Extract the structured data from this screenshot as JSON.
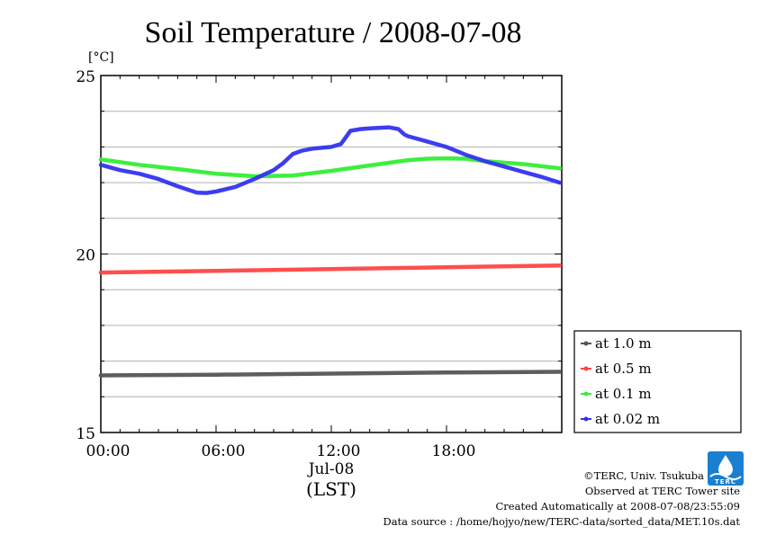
{
  "chart_data": {
    "type": "line",
    "title": "Soil Temperature / 2008-07-08",
    "ylabel": "[°C]",
    "xlabel": "(LST)",
    "x_date_label": "Jul-08",
    "x_ticks": [
      "00:00",
      "06:00",
      "12:00",
      "18:00"
    ],
    "x_tick_hours": [
      0,
      6,
      12,
      18
    ],
    "xlim_hours": [
      0,
      24
    ],
    "y_ticks": [
      "15",
      "20",
      "25"
    ],
    "y_tick_values": [
      15,
      20,
      25
    ],
    "ylim": [
      15,
      25
    ],
    "grid": "horizontal minor lines every 1 °C",
    "legend_position": "right",
    "series": [
      {
        "name": "at 1.0 m",
        "color": "#555555",
        "x": [
          0,
          6,
          12,
          18,
          23.9
        ],
        "values": [
          16.6,
          16.62,
          16.65,
          16.68,
          16.7
        ]
      },
      {
        "name": "at 0.5 m",
        "color": "#ff4444",
        "x": [
          0,
          6,
          12,
          18,
          23.9
        ],
        "values": [
          19.48,
          19.53,
          19.58,
          19.63,
          19.68
        ]
      },
      {
        "name": "at 0.1 m",
        "color": "#33ee33",
        "x": [
          0,
          2,
          4,
          6,
          8,
          10,
          12,
          14,
          16,
          17,
          18,
          19,
          20,
          22,
          23.9
        ],
        "values": [
          22.65,
          22.5,
          22.38,
          22.25,
          22.18,
          22.2,
          22.33,
          22.48,
          22.63,
          22.67,
          22.68,
          22.67,
          22.6,
          22.52,
          22.4
        ]
      },
      {
        "name": "at 0.02 m",
        "color": "#3333ee",
        "x": [
          0,
          1,
          2,
          3,
          4,
          5,
          5.5,
          6,
          7,
          8,
          9,
          9.5,
          10,
          10.5,
          11,
          12,
          12.5,
          13,
          13.5,
          14,
          15,
          15.5,
          15.8,
          16,
          17,
          18,
          19,
          20,
          21,
          22,
          23,
          23.9
        ],
        "values": [
          22.5,
          22.35,
          22.25,
          22.1,
          21.9,
          21.72,
          21.71,
          21.75,
          21.88,
          22.1,
          22.35,
          22.55,
          22.8,
          22.9,
          22.95,
          23.0,
          23.08,
          23.45,
          23.5,
          23.52,
          23.55,
          23.5,
          23.35,
          23.3,
          23.15,
          23.0,
          22.78,
          22.6,
          22.45,
          22.3,
          22.15,
          22.0
        ]
      }
    ]
  },
  "credits": {
    "copyright": "©TERC, Univ. Tsukuba",
    "observed": "Observed at TERC Tower site",
    "created": "Created Automatically at 2008-07-08/23:55:09",
    "source": "Data source : /home/hojyo/new/TERC-data/sorted_data/MET.10s.dat",
    "logo_text": "TERC"
  }
}
